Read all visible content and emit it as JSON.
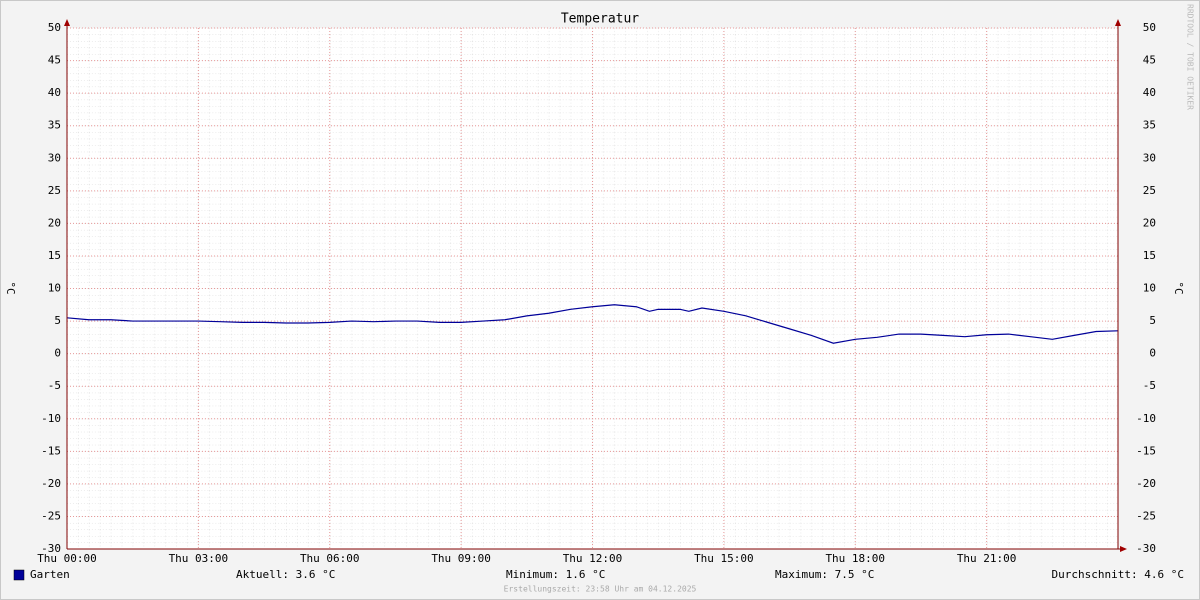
{
  "chart_data": {
    "type": "line",
    "title": "Temperatur",
    "ylabel": "°C",
    "watermark": "RRDTOOL / TOBI OETIKER",
    "x": [
      0,
      0.5,
      1,
      1.5,
      2,
      2.5,
      3,
      3.5,
      4,
      4.5,
      5,
      5.5,
      6,
      6.5,
      7,
      7.5,
      8,
      8.5,
      9,
      9.5,
      10,
      10.5,
      11,
      11.5,
      12,
      12.5,
      13,
      13.3,
      13.5,
      14,
      14.2,
      14.5,
      15,
      15.5,
      16,
      16.5,
      17,
      17.5,
      18,
      18.5,
      19,
      19.5,
      20,
      20.5,
      21,
      21.5,
      22,
      22.5,
      23,
      23.5,
      24
    ],
    "series": [
      {
        "name": "Garten",
        "color": "#000099",
        "values": [
          5.5,
          5.2,
          5.2,
          5.0,
          5.0,
          5.0,
          5.0,
          4.9,
          4.8,
          4.8,
          4.7,
          4.7,
          4.8,
          5.0,
          4.9,
          5.0,
          5.0,
          4.8,
          4.8,
          5.0,
          5.2,
          5.8,
          6.2,
          6.8,
          7.2,
          7.5,
          7.2,
          6.5,
          6.8,
          6.8,
          6.5,
          7.0,
          6.5,
          5.8,
          4.8,
          3.8,
          2.8,
          1.6,
          2.2,
          2.5,
          3.0,
          3.0,
          2.8,
          2.6,
          2.9,
          3.0,
          2.6,
          2.2,
          2.8,
          3.4,
          3.5
        ]
      }
    ],
    "xlim": [
      0,
      24
    ],
    "xticks": [
      {
        "value": 0,
        "label": "Thu 00:00"
      },
      {
        "value": 3,
        "label": "Thu 03:00"
      },
      {
        "value": 6,
        "label": "Thu 06:00"
      },
      {
        "value": 9,
        "label": "Thu 09:00"
      },
      {
        "value": 12,
        "label": "Thu 12:00"
      },
      {
        "value": 15,
        "label": "Thu 15:00"
      },
      {
        "value": 18,
        "label": "Thu 18:00"
      },
      {
        "value": 21,
        "label": "Thu 21:00"
      }
    ],
    "ylim": [
      -30,
      50
    ],
    "yticks": [
      -30,
      -25,
      -20,
      -15,
      -10,
      -5,
      0,
      5,
      10,
      15,
      20,
      25,
      30,
      35,
      40,
      45,
      50
    ],
    "grid": true,
    "stats": [
      "Aktuell: 3.6 °C",
      "Minimum: 1.6 °C",
      "Maximum: 7.5 °C",
      "Durchschnitt: 4.6 °C"
    ],
    "footer": "Erstellungszeit: 23:58 Uhr am 04.12.2025"
  }
}
